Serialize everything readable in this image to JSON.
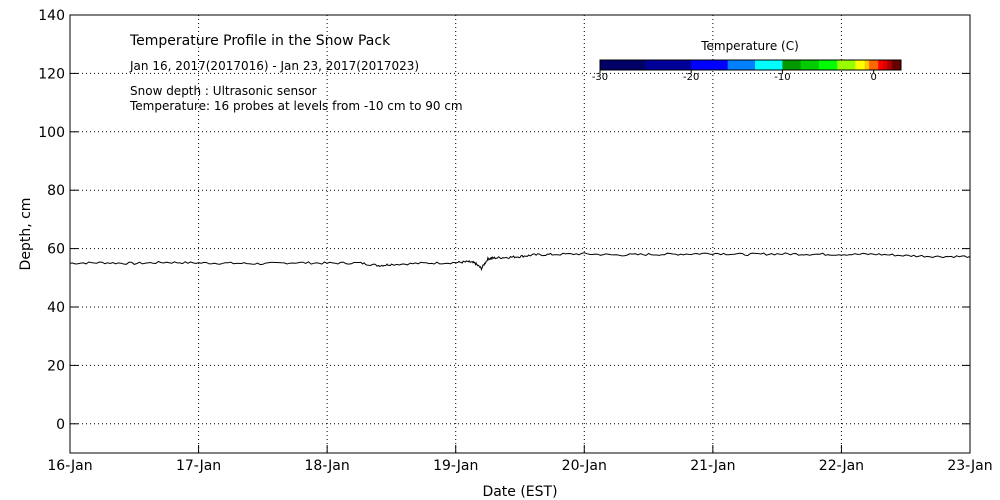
{
  "chart_data": {
    "type": "line",
    "title": "Temperature Profile in the Snow Pack",
    "subtitle": "Jan 16, 2017(2017016) - Jan 23, 2017(2017023)",
    "notes": [
      "Snow depth : Ultrasonic sensor",
      "Temperature: 16 probes at levels from -10 cm to 90 cm"
    ],
    "xlabel": "Date (EST)",
    "ylabel": "Depth, cm",
    "xlim": [
      0,
      7
    ],
    "ylim": [
      -10,
      140
    ],
    "yticks": [
      0,
      20,
      40,
      60,
      80,
      100,
      120,
      140
    ],
    "xticks": [
      "16-Jan",
      "17-Jan",
      "18-Jan",
      "19-Jan",
      "20-Jan",
      "21-Jan",
      "22-Jan",
      "23-Jan"
    ],
    "grid": true,
    "series": [
      {
        "name": "Snow depth",
        "x_unit": "days since Jan 16",
        "x": [
          0,
          0.25,
          0.5,
          0.75,
          1,
          1.25,
          1.5,
          1.75,
          2,
          2.25,
          2.4,
          2.5,
          2.75,
          3,
          3.1,
          3.15,
          3.2,
          3.25,
          3.3,
          3.4,
          3.5,
          3.6,
          3.75,
          4,
          4.25,
          4.5,
          4.75,
          5,
          5.25,
          5.5,
          5.75,
          6,
          6.25,
          6.5,
          6.75,
          7
        ],
        "y": [
          55,
          55.2,
          54.9,
          55.3,
          55.1,
          55,
          54.8,
          55.2,
          55,
          55.1,
          54.2,
          54.6,
          55,
          55.2,
          55.5,
          55,
          53.2,
          56.5,
          56.8,
          57,
          57.3,
          57.8,
          58,
          58.2,
          57.8,
          58,
          58.1,
          58.4,
          58,
          58.2,
          58.1,
          58,
          58.1,
          57.6,
          57.3,
          57.3
        ]
      }
    ],
    "colorbar": {
      "title": "Temperature (C)",
      "range": [
        -30,
        3
      ],
      "tick_labels": [
        "-30",
        "-20",
        "-10",
        "0"
      ],
      "tick_values": [
        -30,
        -20,
        -10,
        0
      ],
      "colors": [
        "#000066",
        "#000099",
        "#0000ff",
        "#0080ff",
        "#00ffff",
        "#009900",
        "#00cc00",
        "#00ff00",
        "#99ff00",
        "#ffff00",
        "#ffcc00",
        "#ff6600",
        "#ff0000",
        "#dd0000",
        "#aa0000",
        "#660000"
      ],
      "bounds": [
        -30,
        -25,
        -20,
        -16,
        -13,
        -10,
        -8,
        -6,
        -4,
        -2,
        -1,
        -0.5,
        0.5,
        1,
        1.5,
        2,
        3
      ]
    }
  }
}
